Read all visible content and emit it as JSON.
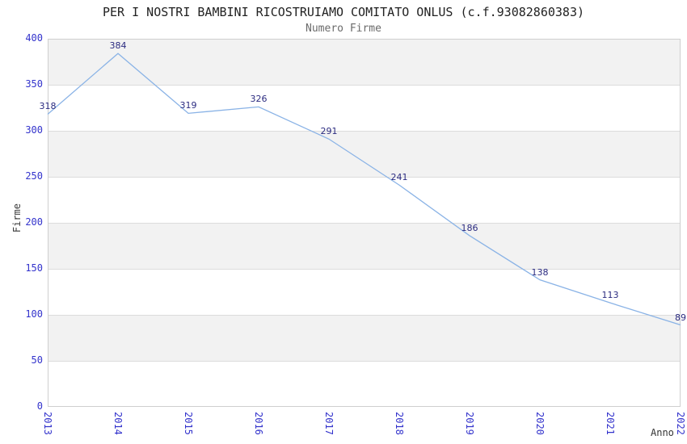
{
  "chart_data": {
    "type": "line",
    "title": "PER I NOSTRI BAMBINI RICOSTRUIAMO COMITATO ONLUS (c.f.93082860383)",
    "subtitle": "Numero Firme",
    "xlabel": "Anno",
    "ylabel": "Firme",
    "x": [
      "2013",
      "2014",
      "2015",
      "2016",
      "2017",
      "2018",
      "2019",
      "2020",
      "2021",
      "2022"
    ],
    "series": [
      {
        "name": "Numero Firme",
        "values": [
          318,
          384,
          319,
          326,
          291,
          241,
          186,
          138,
          113,
          89
        ]
      }
    ],
    "data_labels_visible": true,
    "ylim": [
      0,
      400
    ],
    "yticks": [
      0,
      50,
      100,
      150,
      200,
      250,
      300,
      350,
      400
    ],
    "grid": true,
    "band_stripes": true,
    "legend_position": "none",
    "colors": {
      "line": "#8ab3e6",
      "tick_label": "#3333cc",
      "data_label": "#2b2b80",
      "band": "#f2f2f2",
      "gridline": "#dcdcdc",
      "plot_border": "#cfcfcf",
      "title": "#222222",
      "subtitle": "#6b6b6b",
      "axis_label": "#333333"
    }
  }
}
